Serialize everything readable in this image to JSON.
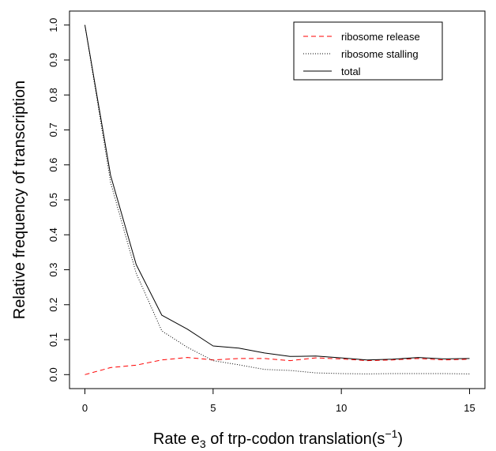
{
  "chart_data": {
    "type": "line",
    "xlabel_main": "Rate e",
    "xlabel_sub": "3",
    "xlabel_rest": " of trp-codon translation(s",
    "xlabel_sup": "−1",
    "xlabel_close": ")",
    "ylabel": "Relative frequency of transcription",
    "xlim": [
      -0.6,
      15.6
    ],
    "ylim": [
      -0.04,
      1.04
    ],
    "x_ticks": [
      0,
      5,
      10,
      15
    ],
    "y_ticks": [
      0.0,
      0.1,
      0.2,
      0.3,
      0.4,
      0.5,
      0.6,
      0.7,
      0.8,
      0.9,
      1.0
    ],
    "y_tick_labels": [
      "0.0",
      "0.1",
      "0.2",
      "0.3",
      "0.4",
      "0.5",
      "0.6",
      "0.7",
      "0.8",
      "0.9",
      "1.0"
    ],
    "legend_position": "top-right",
    "x": [
      0,
      1,
      2,
      3,
      4,
      5,
      6,
      7,
      8,
      9,
      10,
      11,
      12,
      13,
      14,
      15
    ],
    "series": [
      {
        "name": "ribosome release",
        "style": "dashed",
        "color": "#ff0000",
        "values": [
          0.0,
          0.02,
          0.027,
          0.042,
          0.049,
          0.042,
          0.046,
          0.046,
          0.04,
          0.048,
          0.045,
          0.04,
          0.042,
          0.046,
          0.042,
          0.044
        ]
      },
      {
        "name": "ribosome stalling",
        "style": "dotted",
        "color": "#000000",
        "values": [
          1.0,
          0.55,
          0.29,
          0.125,
          0.078,
          0.04,
          0.028,
          0.015,
          0.012,
          0.005,
          0.003,
          0.002,
          0.003,
          0.003,
          0.003,
          0.002
        ]
      },
      {
        "name": "total",
        "style": "solid",
        "color": "#000000",
        "values": [
          1.0,
          0.57,
          0.315,
          0.17,
          0.13,
          0.082,
          0.076,
          0.062,
          0.052,
          0.053,
          0.048,
          0.042,
          0.044,
          0.049,
          0.045,
          0.046
        ]
      }
    ]
  }
}
